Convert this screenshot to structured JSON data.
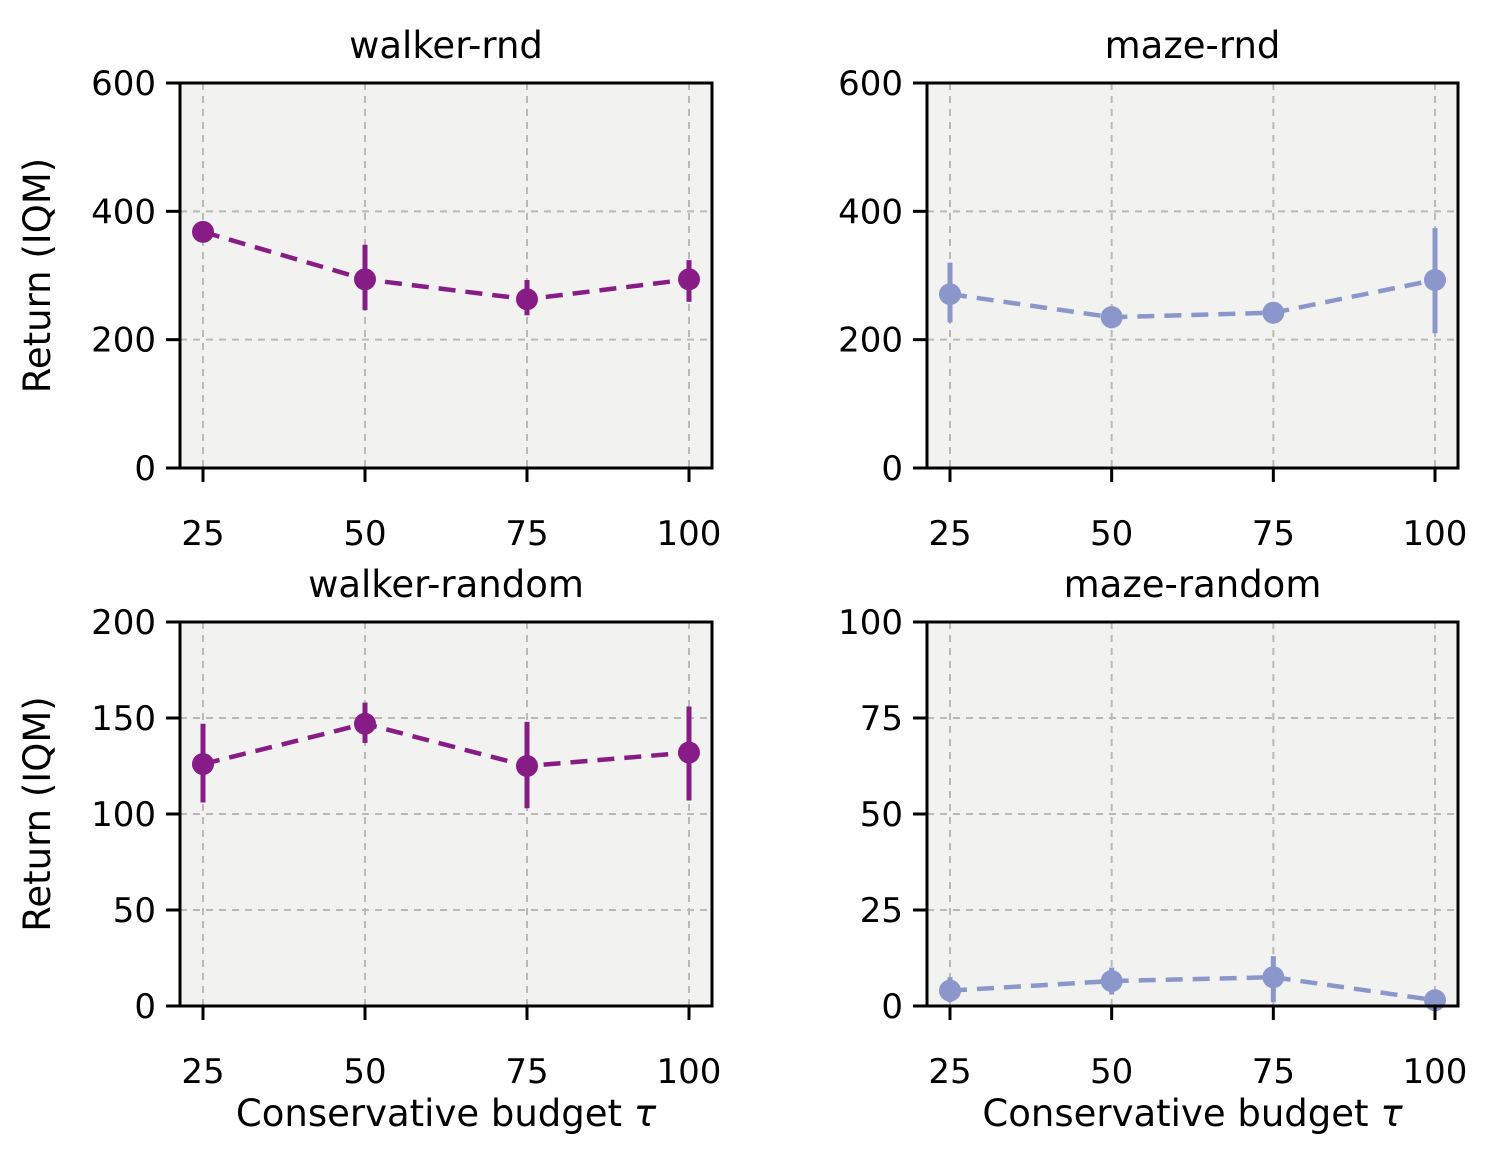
{
  "figure": {
    "shared_ylabel": "Return (IQM)",
    "shared_xlabel": "Conservative budget τ"
  },
  "chart_data": [
    {
      "type": "line",
      "title": "walker-rnd",
      "x": [
        25,
        50,
        75,
        100
      ],
      "y": [
        368,
        294,
        263,
        294
      ],
      "err_low": [
        352,
        246,
        238,
        259
      ],
      "err_high": [
        384,
        348,
        293,
        324
      ],
      "xticks": [
        25,
        50,
        75,
        100
      ],
      "yticks": [
        0,
        200,
        400,
        600
      ],
      "ylim": [
        0,
        600
      ],
      "xlabel": "",
      "ylabel": "Return (IQM)",
      "color": "#871c87",
      "line_style": "dashed",
      "marker": "circle",
      "grid": true,
      "plot_background": "#f2f2f1",
      "grid_color": "#b9b9b9"
    },
    {
      "type": "line",
      "title": "maze-rnd",
      "x": [
        25,
        50,
        75,
        100
      ],
      "y": [
        271,
        235,
        242,
        293
      ],
      "err_low": [
        227,
        218,
        231,
        210
      ],
      "err_high": [
        320,
        252,
        253,
        374
      ],
      "xticks": [
        25,
        50,
        75,
        100
      ],
      "yticks": [
        0,
        200,
        400,
        600
      ],
      "ylim": [
        0,
        600
      ],
      "xlabel": "",
      "ylabel": "",
      "color": "#8b96ca",
      "line_style": "dashed",
      "marker": "circle",
      "grid": true,
      "plot_background": "#f2f2f1",
      "grid_color": "#b9b9b9"
    },
    {
      "type": "line",
      "title": "walker-random",
      "x": [
        25,
        50,
        75,
        100
      ],
      "y": [
        126,
        147,
        125,
        132
      ],
      "err_low": [
        106,
        137,
        103,
        107
      ],
      "err_high": [
        147,
        158,
        148,
        156
      ],
      "xticks": [
        25,
        50,
        75,
        100
      ],
      "yticks": [
        0,
        50,
        100,
        150,
        200
      ],
      "ylim": [
        0,
        200
      ],
      "xlabel": "Conservative budget τ",
      "ylabel": "Return (IQM)",
      "color": "#871c87",
      "line_style": "dashed",
      "marker": "circle",
      "grid": true,
      "plot_background": "#f2f2f1",
      "grid_color": "#b9b9b9"
    },
    {
      "type": "line",
      "title": "maze-random",
      "x": [
        25,
        50,
        75,
        100
      ],
      "y": [
        4,
        6.5,
        7.5,
        1.5
      ],
      "err_low": [
        1,
        3,
        1,
        0
      ],
      "err_high": [
        7.5,
        10,
        13,
        3.5
      ],
      "xticks": [
        25,
        50,
        75,
        100
      ],
      "yticks": [
        0,
        25,
        50,
        75,
        100
      ],
      "ylim": [
        0,
        100
      ],
      "xlabel": "Conservative budget τ",
      "ylabel": "",
      "color": "#8b96ca",
      "line_style": "dashed",
      "marker": "circle",
      "grid": true,
      "plot_background": "#f2f2f1",
      "grid_color": "#b9b9b9"
    }
  ]
}
